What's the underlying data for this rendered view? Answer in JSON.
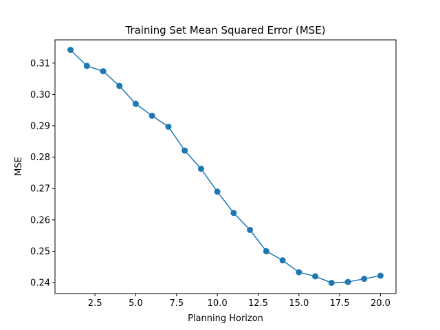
{
  "chart_data": {
    "type": "line",
    "title": "Training Set Mean Squared Error (MSE)",
    "xlabel": "Planning Horizon",
    "ylabel": "MSE",
    "xlim": [
      0.05,
      20.95
    ],
    "ylim": [
      0.2365,
      0.3174
    ],
    "xticks": [
      2.5,
      5.0,
      7.5,
      10.0,
      12.5,
      15.0,
      17.5,
      20.0
    ],
    "xtick_labels": [
      "2.5",
      "5.0",
      "7.5",
      "10.0",
      "12.5",
      "15.0",
      "17.5",
      "20.0"
    ],
    "yticks": [
      0.24,
      0.25,
      0.26,
      0.27,
      0.28,
      0.29,
      0.3,
      0.31
    ],
    "ytick_labels": [
      "0.24",
      "0.25",
      "0.26",
      "0.27",
      "0.28",
      "0.29",
      "0.30",
      "0.31"
    ],
    "grid": false,
    "color": "#1f77b4",
    "marker": "circle",
    "series": [
      {
        "x": [
          1,
          2,
          3,
          4,
          5,
          6,
          7,
          8,
          9,
          10,
          11,
          12,
          13,
          14,
          15,
          16,
          17,
          18,
          19,
          20
        ],
        "values": [
          0.3142,
          0.3091,
          0.3074,
          0.3027,
          0.297,
          0.2932,
          0.2897,
          0.2821,
          0.2763,
          0.269,
          0.2622,
          0.2568,
          0.25,
          0.2471,
          0.2433,
          0.242,
          0.2399,
          0.2402,
          0.2412,
          0.2422
        ]
      }
    ]
  }
}
